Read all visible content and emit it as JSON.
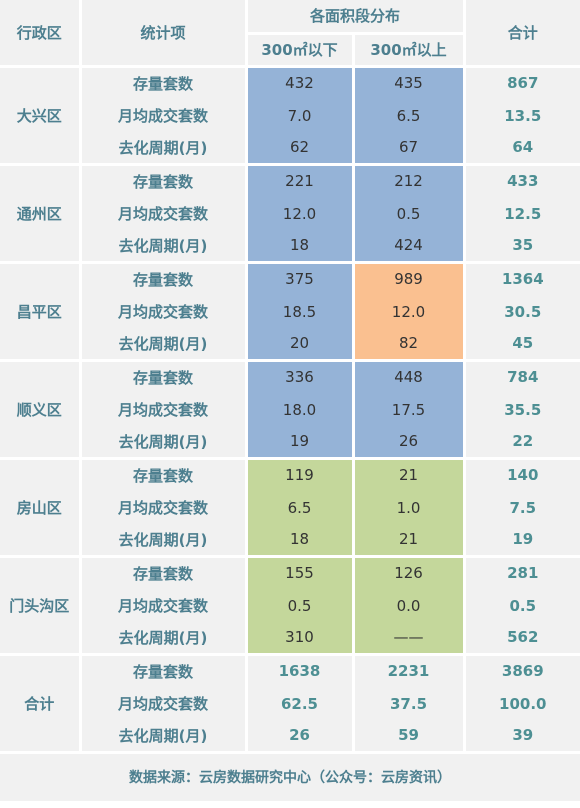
{
  "header": {
    "district": "行政区",
    "item": "统计项",
    "distribution": "各面积段分布",
    "under300": "300㎡以下",
    "over300": "300㎡以上",
    "total": "合计"
  },
  "item_labels": [
    "存量套数",
    "月均成交套数",
    "去化周期(月)"
  ],
  "regions": [
    {
      "name": "大兴区",
      "under": [
        "432",
        "7.0",
        "62"
      ],
      "over": [
        "435",
        "6.5",
        "67"
      ],
      "total": [
        "867",
        "13.5",
        "64"
      ]
    },
    {
      "name": "通州区",
      "under": [
        "221",
        "12.0",
        "18"
      ],
      "over": [
        "212",
        "0.5",
        "424"
      ],
      "total": [
        "433",
        "12.5",
        "35"
      ]
    },
    {
      "name": "昌平区",
      "under": [
        "375",
        "18.5",
        "20"
      ],
      "over": [
        "989",
        "12.0",
        "82"
      ],
      "total": [
        "1364",
        "30.5",
        "45"
      ]
    },
    {
      "name": "顺义区",
      "under": [
        "336",
        "18.0",
        "19"
      ],
      "over": [
        "448",
        "17.5",
        "26"
      ],
      "total": [
        "784",
        "35.5",
        "22"
      ]
    },
    {
      "name": "房山区",
      "under": [
        "119",
        "6.5",
        "18"
      ],
      "over": [
        "21",
        "1.0",
        "21"
      ],
      "total": [
        "140",
        "7.5",
        "19"
      ]
    },
    {
      "name": "门头沟区",
      "under": [
        "155",
        "0.5",
        "310"
      ],
      "over": [
        "126",
        "0.0",
        "——"
      ],
      "total": [
        "281",
        "0.5",
        "562"
      ]
    },
    {
      "name": "合计",
      "under": [
        "1638",
        "62.5",
        "26"
      ],
      "over": [
        "2231",
        "37.5",
        "59"
      ],
      "total": [
        "3869",
        "100.0",
        "39"
      ]
    }
  ],
  "footer": "数据来源：云房数据研究中心（公众号：云房资讯）",
  "colors": {
    "blue": "#95b3d7",
    "orange": "#fac090",
    "green": "#c4d79b",
    "label": "#4d7f8f"
  }
}
